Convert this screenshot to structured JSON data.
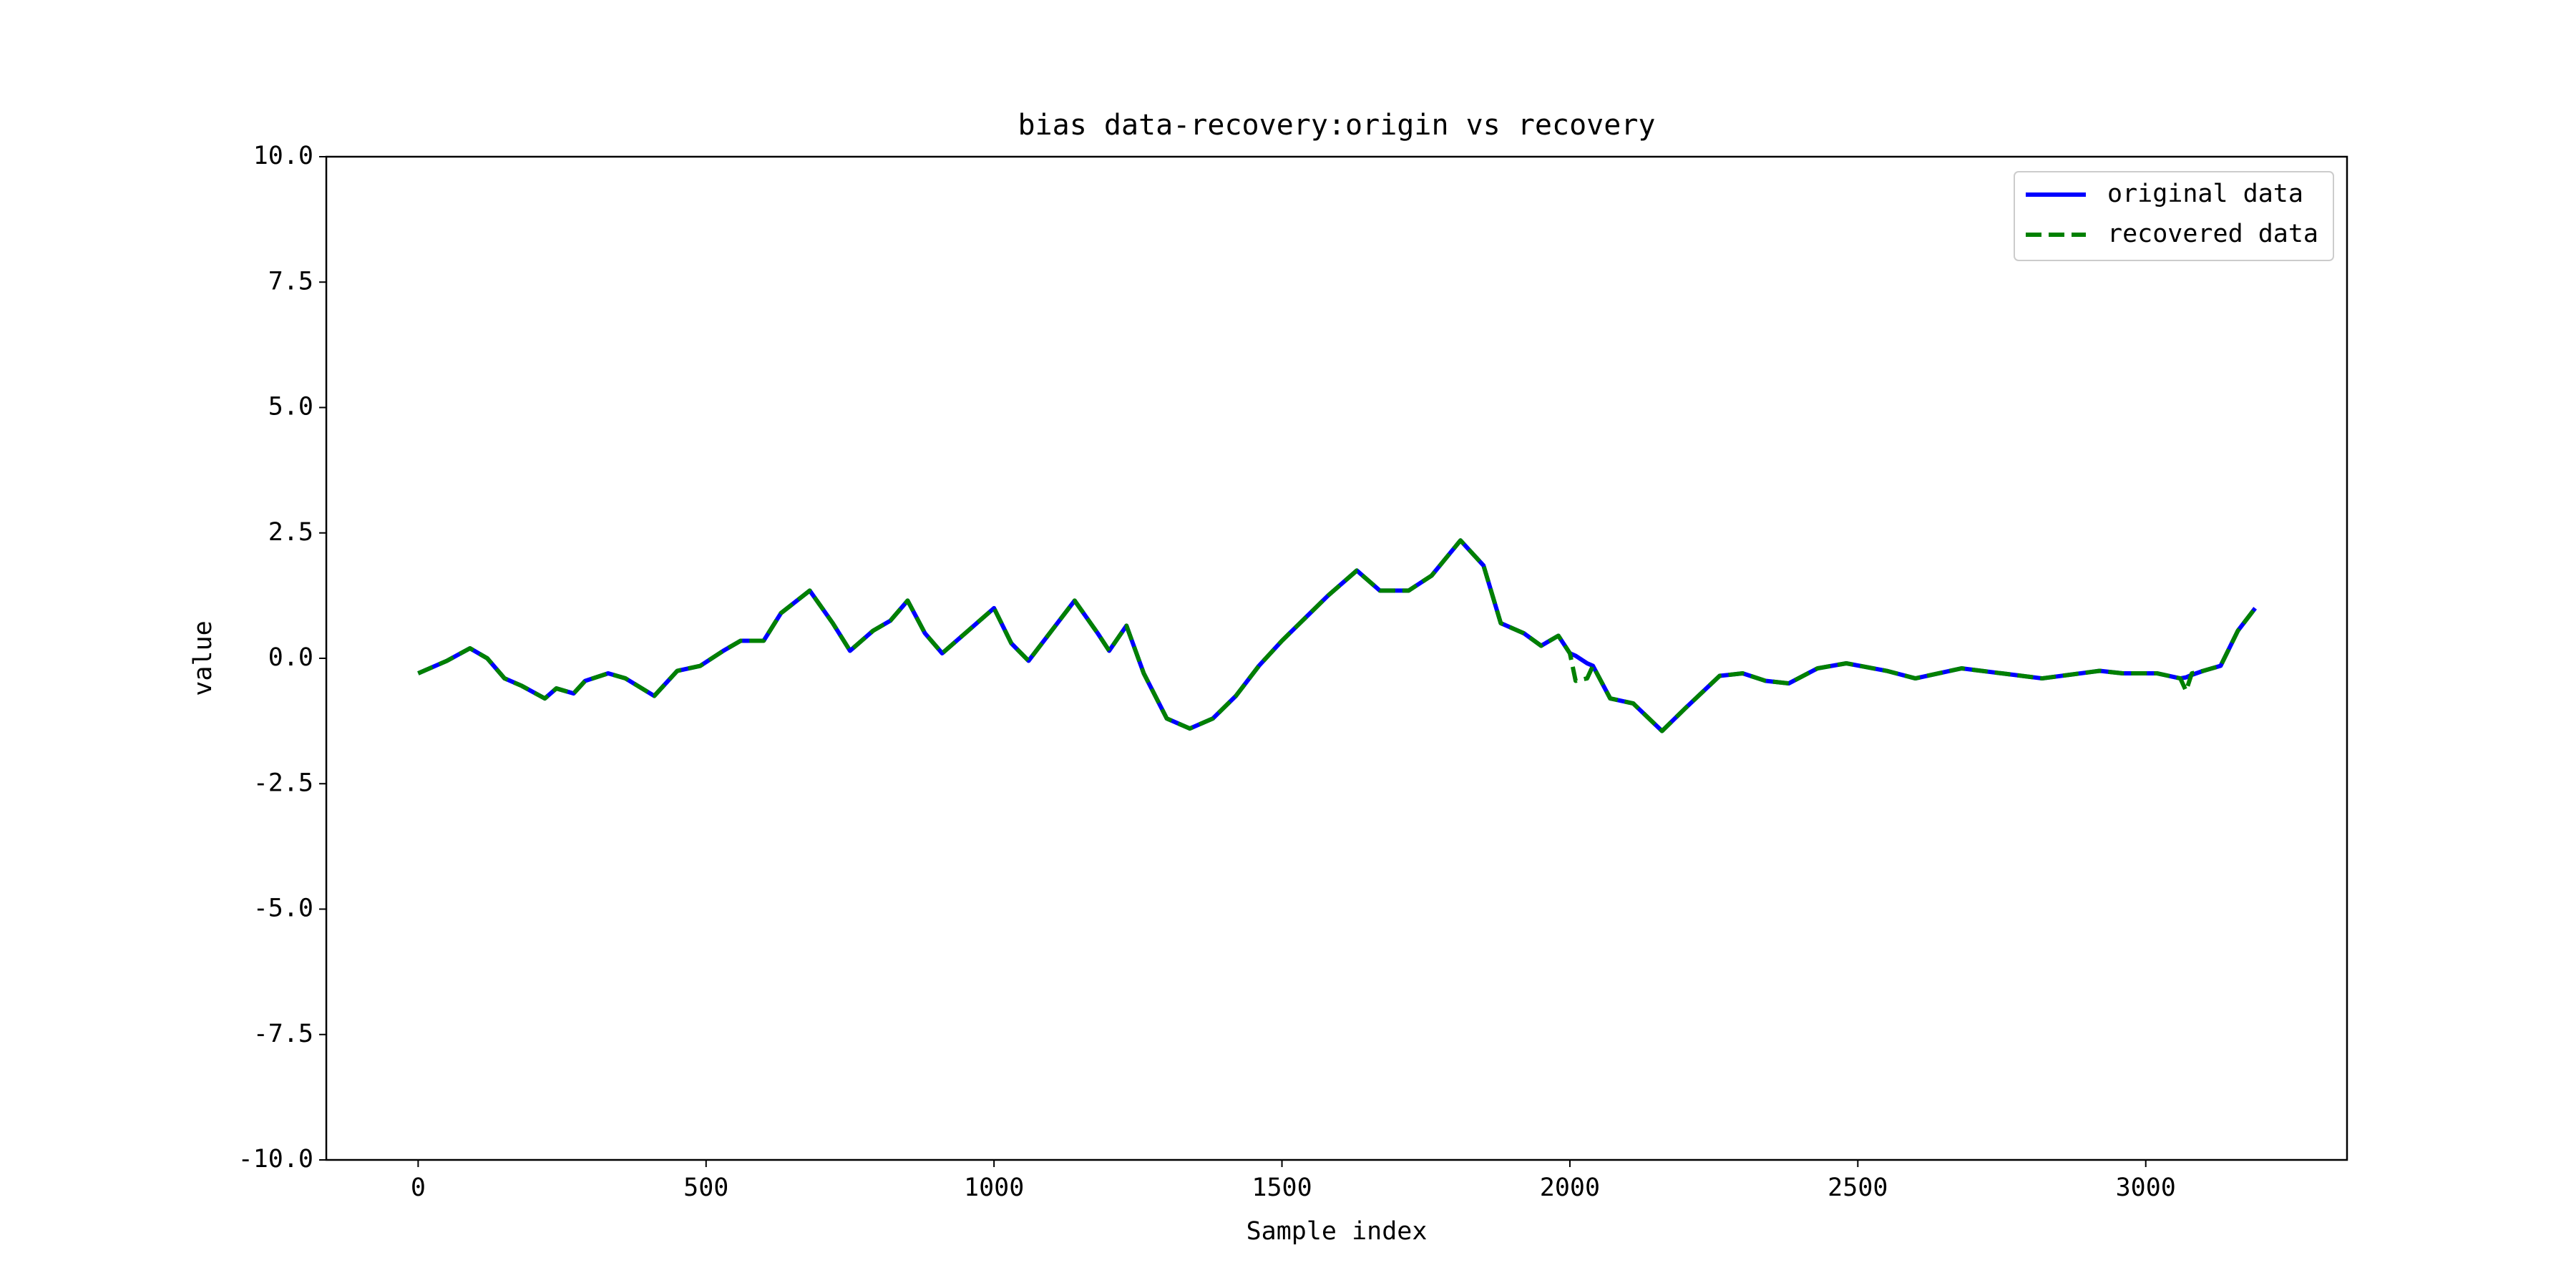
{
  "chart_data": {
    "type": "line",
    "title": "bias data-recovery:origin vs recovery",
    "xlabel": "Sample index",
    "ylabel": "value",
    "x": [
      0,
      50,
      90,
      120,
      150,
      180,
      220,
      240,
      270,
      290,
      330,
      360,
      410,
      450,
      490,
      530,
      560,
      600,
      630,
      680,
      720,
      750,
      790,
      820,
      850,
      880,
      910,
      950,
      1000,
      1030,
      1060,
      1100,
      1140,
      1180,
      1200,
      1230,
      1260,
      1300,
      1340,
      1380,
      1420,
      1460,
      1500,
      1540,
      1580,
      1630,
      1670,
      1720,
      1760,
      1810,
      1850,
      1880,
      1920,
      1950,
      1980,
      2000,
      2010,
      2030,
      2040,
      2070,
      2110,
      2160,
      2200,
      2260,
      2300,
      2340,
      2380,
      2430,
      2480,
      2550,
      2600,
      2680,
      2750,
      2820,
      2920,
      2960,
      3020,
      3060,
      3070,
      3080,
      3100,
      3130,
      3160,
      3190
    ],
    "series": [
      {
        "name": "original data",
        "color": "#0000ff",
        "style": "solid",
        "values": [
          -0.3,
          -0.05,
          0.2,
          0,
          -0.4,
          -0.55,
          -0.8,
          -0.6,
          -0.7,
          -0.45,
          -0.3,
          -0.4,
          -0.75,
          -0.25,
          -0.15,
          0.15,
          0.35,
          0.35,
          0.9,
          1.35,
          0.7,
          0.15,
          0.55,
          0.75,
          1.15,
          0.5,
          0.1,
          0.5,
          1.0,
          0.3,
          -0.05,
          0.55,
          1.15,
          0.5,
          0.15,
          0.65,
          -0.3,
          -1.2,
          -1.4,
          -1.2,
          -0.75,
          -0.15,
          0.35,
          0.8,
          1.25,
          1.75,
          1.35,
          1.35,
          1.65,
          2.35,
          1.85,
          0.7,
          0.5,
          0.25,
          0.45,
          0.1,
          0.05,
          -0.1,
          -0.15,
          -0.8,
          -0.9,
          -1.45,
          -1.0,
          -0.35,
          -0.3,
          -0.45,
          -0.5,
          -0.2,
          -0.1,
          -0.25,
          -0.4,
          -0.2,
          -0.3,
          -0.4,
          -0.25,
          -0.3,
          -0.3,
          -0.4,
          -0.38,
          -0.33,
          -0.25,
          -0.15,
          0.55,
          1.0
        ]
      },
      {
        "name": "recovered data",
        "color": "#008000",
        "style": "dashed",
        "values": [
          -0.3,
          -0.05,
          0.2,
          0,
          -0.4,
          -0.55,
          -0.8,
          -0.6,
          -0.7,
          -0.45,
          -0.3,
          -0.4,
          -0.75,
          -0.25,
          -0.15,
          0.15,
          0.35,
          0.35,
          0.9,
          1.35,
          0.7,
          0.15,
          0.55,
          0.75,
          1.15,
          0.5,
          0.1,
          0.5,
          1.0,
          0.3,
          -0.05,
          0.55,
          1.15,
          0.5,
          0.15,
          0.65,
          -0.3,
          -1.2,
          -1.4,
          -1.2,
          -0.75,
          -0.15,
          0.35,
          0.8,
          1.25,
          1.75,
          1.35,
          1.35,
          1.65,
          2.35,
          1.85,
          0.7,
          0.5,
          0.25,
          0.45,
          0.1,
          -0.45,
          -0.4,
          -0.15,
          -0.8,
          -0.9,
          -1.45,
          -1.0,
          -0.35,
          -0.3,
          -0.45,
          -0.5,
          -0.2,
          -0.1,
          -0.25,
          -0.4,
          -0.2,
          -0.3,
          -0.4,
          -0.25,
          -0.3,
          -0.3,
          -0.4,
          -0.65,
          -0.3,
          -0.25,
          -0.15,
          0.55,
          1.0
        ]
      }
    ],
    "xlim": [
      -159.5,
      3349.5
    ],
    "ylim": [
      -10,
      10
    ],
    "xticks": [
      0,
      500,
      1000,
      1500,
      2000,
      2500,
      3000
    ],
    "yticks": [
      {
        "value": -10,
        "label": "-10.0"
      },
      {
        "value": -7.5,
        "label": "-7.5"
      },
      {
        "value": -5,
        "label": "-5.0"
      },
      {
        "value": -2.5,
        "label": "-2.5"
      },
      {
        "value": 0,
        "label": "0.0"
      },
      {
        "value": 2.5,
        "label": "2.5"
      },
      {
        "value": 5,
        "label": "5.0"
      },
      {
        "value": 7.5,
        "label": "7.5"
      },
      {
        "value": 10,
        "label": "10.0"
      }
    ],
    "legend": "upper right",
    "grid": false
  }
}
